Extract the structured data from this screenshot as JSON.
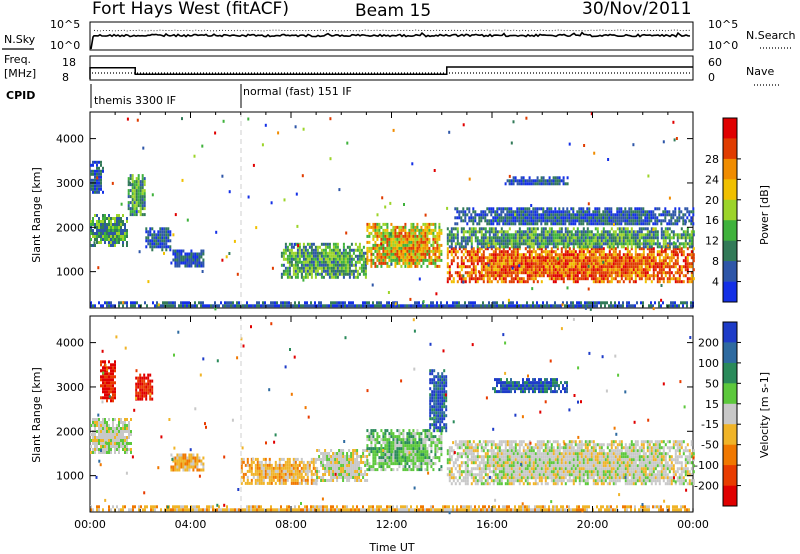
{
  "header": {
    "station": "Fort Hays West (fitACF)",
    "beam": "Beam 15",
    "date": "30/Nov/2011"
  },
  "strip": {
    "nsky_label": "N.Sky",
    "nsearch_label": "N.Search",
    "freq_label_1": "Freq.",
    "freq_label_2": "[MHz]",
    "nave_label": "Nave",
    "cpid_label": "CPID",
    "noise_left_ticks": [
      "10^5",
      "10^0"
    ],
    "noise_right_ticks": [
      "10^5",
      "10^0"
    ],
    "freq_ticks": [
      "18",
      "8"
    ],
    "nave_ticks": [
      "60",
      "0"
    ],
    "cpid_segments": [
      {
        "label": "themis 3300 IF",
        "start_hour": 0,
        "end_hour": 6
      },
      {
        "label": "normal (fast) 151 IF",
        "start_hour": 6,
        "end_hour": 24
      }
    ],
    "freq_levels": [
      {
        "start_hour": 0,
        "end_hour": 1.8,
        "mhz": 13.3
      },
      {
        "start_hour": 1.8,
        "end_hour": 14.2,
        "mhz": 10.6
      },
      {
        "start_hour": 14.2,
        "end_hour": 24,
        "mhz": 13.6
      }
    ]
  },
  "chart_data": [
    {
      "type": "heatmap",
      "panel": "power",
      "xlabel": "",
      "ylabel": "Slant Range [km]",
      "xlim": [
        0,
        24
      ],
      "ylim": [
        180,
        4600
      ],
      "yticks": [
        "1000",
        "2000",
        "3000",
        "4000"
      ],
      "colorbar": {
        "label": "Power [dB]",
        "ticks": [
          "4",
          "8",
          "12",
          "16",
          "20",
          "24",
          "28"
        ],
        "colors": [
          "#1430e6",
          "#2e56a8",
          "#327a58",
          "#3fb23c",
          "#9cd42a",
          "#f0c000",
          "#f08c00",
          "#e03c00",
          "#e00000"
        ]
      },
      "regions": [
        {
          "t0": 0.0,
          "t1": 1.5,
          "r0": 1600,
          "r1": 2300,
          "level": "med"
        },
        {
          "t0": 0.0,
          "t1": 0.5,
          "r0": 2800,
          "r1": 3500,
          "level": "low"
        },
        {
          "t0": 1.5,
          "t1": 2.2,
          "r0": 2300,
          "r1": 3200,
          "level": "med"
        },
        {
          "t0": 2.2,
          "t1": 3.2,
          "r0": 1500,
          "r1": 2000,
          "level": "low"
        },
        {
          "t0": 3.2,
          "t1": 4.5,
          "r0": 1150,
          "r1": 1500,
          "level": "low"
        },
        {
          "t0": 7.6,
          "t1": 11.0,
          "r0": 850,
          "r1": 1650,
          "level": "med"
        },
        {
          "t0": 11.0,
          "t1": 14.0,
          "r0": 1100,
          "r1": 2100,
          "level": "high"
        },
        {
          "t0": 14.2,
          "t1": 24.0,
          "r0": 800,
          "r1": 1550,
          "level": "max"
        },
        {
          "t0": 14.2,
          "t1": 24.0,
          "r0": 1550,
          "r1": 2000,
          "level": "med"
        },
        {
          "t0": 14.5,
          "t1": 24.0,
          "r0": 2050,
          "r1": 2450,
          "level": "low"
        },
        {
          "t0": 16.5,
          "t1": 19.0,
          "r0": 2950,
          "r1": 3150,
          "level": "low"
        },
        {
          "t0": 0.0,
          "t1": 24.0,
          "r0": 200,
          "r1": 330,
          "level": "low"
        }
      ]
    },
    {
      "type": "heatmap",
      "panel": "velocity",
      "xlabel": "Time UT",
      "ylabel": "Slant Range [km]",
      "xlim": [
        0,
        24
      ],
      "ylim": [
        180,
        4600
      ],
      "xticks": [
        "00:00",
        "04:00",
        "08:00",
        "12:00",
        "16:00",
        "20:00",
        "00:00"
      ],
      "yticks": [
        "1000",
        "2000",
        "3000",
        "4000"
      ],
      "colorbar": {
        "label": "Velocity [m s-1]",
        "ticks": [
          "200",
          "100",
          "50",
          "15",
          "-15",
          "-50",
          "-100",
          "-200"
        ],
        "colors": [
          "#1e3cc8",
          "#2e6aa0",
          "#2a8a5a",
          "#5cc83c",
          "#c8c8c8",
          "#f0b428",
          "#f07800",
          "#e83c00",
          "#e00000"
        ]
      },
      "regions": [
        {
          "t0": 0.0,
          "t1": 1.6,
          "r0": 1500,
          "r1": 2300,
          "level": "zero"
        },
        {
          "t0": 0.4,
          "t1": 1.0,
          "r0": 2700,
          "r1": 3600,
          "level": "neg_strong"
        },
        {
          "t0": 1.8,
          "t1": 2.5,
          "r0": 2700,
          "r1": 3300,
          "level": "neg_strong"
        },
        {
          "t0": 3.2,
          "t1": 4.5,
          "r0": 1150,
          "r1": 1500,
          "level": "neg"
        },
        {
          "t0": 6.0,
          "t1": 9.0,
          "r0": 800,
          "r1": 1400,
          "level": "neg"
        },
        {
          "t0": 9.0,
          "t1": 11.0,
          "r0": 900,
          "r1": 1600,
          "level": "zero"
        },
        {
          "t0": 11.0,
          "t1": 14.0,
          "r0": 1150,
          "r1": 2050,
          "level": "pos"
        },
        {
          "t0": 13.5,
          "t1": 14.2,
          "r0": 2000,
          "r1": 3400,
          "level": "pos_strong"
        },
        {
          "t0": 14.2,
          "t1": 24.0,
          "r0": 800,
          "r1": 1800,
          "level": "zero"
        },
        {
          "t0": 16.0,
          "t1": 19.0,
          "r0": 2900,
          "r1": 3200,
          "level": "pos_strong"
        },
        {
          "t0": 0.0,
          "t1": 24.0,
          "r0": 200,
          "r1": 330,
          "level": "neg"
        }
      ]
    }
  ]
}
